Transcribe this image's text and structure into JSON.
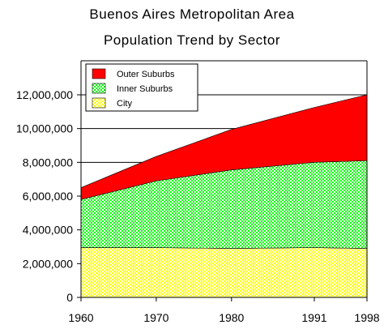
{
  "chart_data": {
    "type": "area",
    "stacked": true,
    "title": "Buenos Aires Metropolitan Area",
    "subtitle": "Population Trend by Sector",
    "xlabel": "",
    "ylabel": "",
    "x": [
      1960,
      1970,
      1980,
      1991,
      1998
    ],
    "ylim": [
      0,
      12000000
    ],
    "yticks": [
      "0",
      "2,000,000",
      "4,000,000",
      "6,000,000",
      "8,000,000",
      "10,000,000",
      "12,000,000"
    ],
    "xticks": [
      "1960",
      "1970",
      "1980",
      "1991",
      "1998"
    ],
    "grid": true,
    "legend_position": "top-left",
    "series": [
      {
        "name": "City",
        "values": [
          2950000,
          2950000,
          2900000,
          2950000,
          2900000
        ],
        "color": "#ffff00",
        "pattern": "checker"
      },
      {
        "name": "Inner Suburbs",
        "values": [
          2850000,
          3950000,
          4650000,
          5050000,
          5200000
        ],
        "color": "#00ff00",
        "pattern": "checker"
      },
      {
        "name": "Outer Suburbs",
        "values": [
          700000,
          1450000,
          2400000,
          3250000,
          3900000
        ],
        "color": "#ff0000",
        "pattern": "solid"
      }
    ]
  }
}
